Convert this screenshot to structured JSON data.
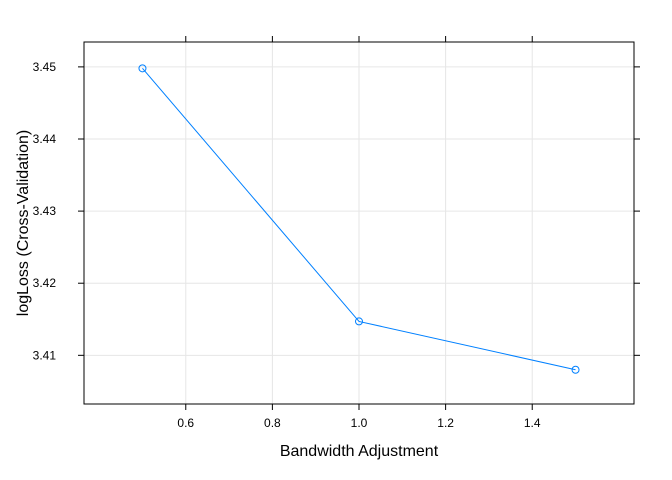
{
  "chart_data": {
    "type": "line",
    "title": "",
    "xlabel": "Bandwidth Adjustment",
    "ylabel": "logLoss (Cross-Validation)",
    "x": [
      0.5,
      1.0,
      1.5
    ],
    "series": [
      {
        "values": [
          3.4498,
          3.4147,
          3.408
        ]
      }
    ],
    "xticks": [
      0.6,
      0.8,
      1.0,
      1.2,
      1.4
    ],
    "xtick_labels": [
      "0.6",
      "0.8",
      "1.0",
      "1.2",
      "1.4"
    ],
    "yticks": [
      3.41,
      3.42,
      3.43,
      3.44,
      3.45
    ],
    "ytick_labels": [
      "3.41",
      "3.42",
      "3.43",
      "3.44",
      "3.45"
    ],
    "xlim": [
      0.365,
      1.635
    ],
    "ylim": [
      3.40325,
      3.45345
    ],
    "grid": true,
    "legend": "none",
    "colors": {
      "line": "#0080ff",
      "grid": "#e6e6e6",
      "axis": "#000000"
    }
  }
}
